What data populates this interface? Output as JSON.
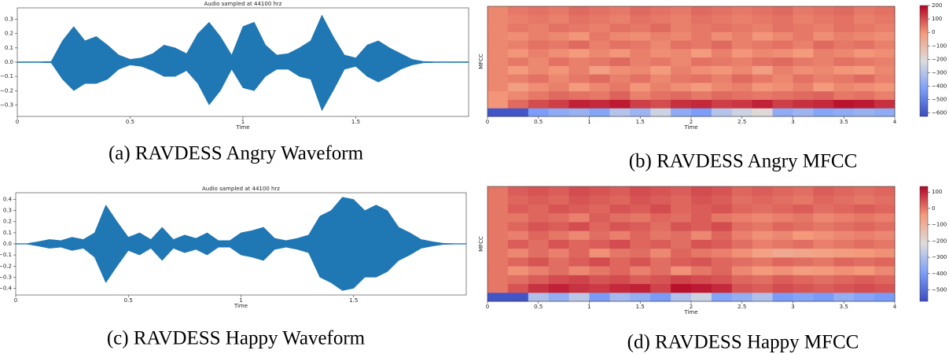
{
  "chart_data": [
    {
      "type": "waveform",
      "title": "Audio sampled at 44100 hrz",
      "xlabel": "Time",
      "caption": "(a) RAVDESS Angry Waveform",
      "color": "#1f77b4",
      "xlim": [
        0,
        2.0
      ],
      "ylim": [
        -0.38,
        0.38
      ],
      "xticks": [
        0,
        0.5,
        1,
        1.5
      ],
      "yticks": [
        {
          "value": -0.3,
          "label": "−0.3"
        },
        {
          "value": -0.2,
          "label": "−0.2"
        },
        {
          "value": -0.1,
          "label": "−0.1"
        },
        {
          "value": 0,
          "label": "0.0"
        },
        0.1,
        0.2,
        0.3
      ],
      "x": [
        0,
        0.05,
        0.1,
        0.15,
        0.2,
        0.25,
        0.3,
        0.35,
        0.4,
        0.45,
        0.5,
        0.55,
        0.6,
        0.65,
        0.7,
        0.75,
        0.8,
        0.85,
        0.9,
        0.95,
        1.0,
        1.05,
        1.1,
        1.15,
        1.2,
        1.25,
        1.3,
        1.35,
        1.4,
        1.45,
        1.5,
        1.55,
        1.6,
        1.65,
        1.7,
        1.75,
        1.8,
        1.85,
        1.9,
        1.95,
        2.0
      ],
      "upper": [
        0.003,
        0.003,
        0.003,
        0.005,
        0.15,
        0.25,
        0.15,
        0.18,
        0.12,
        0.05,
        0.02,
        0.03,
        0.06,
        0.12,
        0.1,
        0.06,
        0.2,
        0.28,
        0.18,
        0.05,
        0.25,
        0.28,
        0.12,
        0.05,
        0.06,
        0.1,
        0.15,
        0.33,
        0.18,
        0.05,
        0.03,
        0.12,
        0.15,
        0.1,
        0.06,
        0.02,
        0.005,
        0.003,
        0.003,
        0.003,
        0.003
      ],
      "lower": [
        -0.003,
        -0.003,
        -0.003,
        -0.005,
        -0.12,
        -0.2,
        -0.15,
        -0.15,
        -0.12,
        -0.05,
        -0.02,
        -0.03,
        -0.06,
        -0.1,
        -0.1,
        -0.06,
        -0.15,
        -0.3,
        -0.2,
        -0.05,
        -0.18,
        -0.2,
        -0.1,
        -0.05,
        -0.05,
        -0.1,
        -0.12,
        -0.34,
        -0.2,
        -0.05,
        -0.03,
        -0.1,
        -0.14,
        -0.1,
        -0.05,
        -0.02,
        -0.005,
        -0.003,
        -0.003,
        -0.003,
        -0.003
      ]
    },
    {
      "type": "heatmap",
      "xlabel": "Time",
      "ylabel": "MFCC",
      "caption": "(b) RAVDESS Angry MFCC",
      "colormap": "coolwarm",
      "xlim": [
        0,
        4
      ],
      "xticks": [
        0,
        0.5,
        1,
        1.5,
        2,
        2.5,
        3,
        3.5,
        4
      ],
      "clim": [
        -625,
        200
      ],
      "cticks": [
        200,
        100,
        0,
        {
          "value": -100,
          "label": "−100"
        },
        {
          "value": -200,
          "label": "−200"
        },
        {
          "value": -300,
          "label": "−300"
        },
        {
          "value": -400,
          "label": "−400"
        },
        {
          "value": -500,
          "label": "−500"
        },
        {
          "value": -600,
          "label": "−600"
        }
      ],
      "values": [
        [
          -600,
          -600,
          -420,
          -380,
          -360,
          -400,
          -300,
          -350,
          -250,
          -380,
          -420,
          -300,
          -250,
          -200,
          -380,
          -350,
          -400,
          -380,
          -360,
          -380
        ],
        [
          0,
          60,
          100,
          120,
          160,
          150,
          170,
          120,
          100,
          140,
          150,
          120,
          130,
          160,
          120,
          140,
          150,
          180,
          170,
          140
        ],
        [
          0,
          20,
          40,
          60,
          50,
          40,
          70,
          30,
          50,
          60,
          40,
          60,
          50,
          40,
          50,
          60,
          70,
          40,
          50,
          30
        ],
        [
          20,
          -20,
          10,
          30,
          -10,
          20,
          40,
          0,
          30,
          10,
          -10,
          20,
          30,
          0,
          10,
          30,
          -10,
          20,
          10,
          0
        ],
        [
          20,
          30,
          50,
          20,
          40,
          60,
          30,
          50,
          20,
          40,
          50,
          30,
          60,
          40,
          20,
          50,
          30,
          40,
          60,
          30
        ],
        [
          20,
          -10,
          20,
          0,
          30,
          -20,
          10,
          20,
          -10,
          30,
          10,
          0,
          20,
          -20,
          30,
          10,
          20,
          0,
          -10,
          20
        ],
        [
          20,
          40,
          20,
          50,
          30,
          40,
          60,
          30,
          40,
          20,
          50,
          40,
          30,
          50,
          60,
          40,
          30,
          50,
          40,
          30
        ],
        [
          20,
          0,
          30,
          10,
          -10,
          20,
          0,
          30,
          10,
          20,
          -10,
          30,
          0,
          20,
          10,
          -10,
          30,
          20,
          0,
          10
        ],
        [
          20,
          30,
          50,
          40,
          60,
          30,
          50,
          40,
          20,
          50,
          40,
          60,
          30,
          40,
          50,
          30,
          60,
          40,
          50,
          30
        ],
        [
          20,
          10,
          30,
          20,
          0,
          40,
          20,
          10,
          30,
          20,
          40,
          10,
          30,
          0,
          20,
          40,
          10,
          30,
          20,
          10
        ],
        [
          20,
          40,
          30,
          50,
          40,
          30,
          50,
          40,
          60,
          30,
          40,
          50,
          40,
          30,
          50,
          40,
          30,
          50,
          40,
          30
        ],
        [
          20,
          30,
          40,
          30,
          50,
          40,
          30,
          50,
          40,
          30,
          50,
          40,
          30,
          40,
          50,
          30,
          40,
          50,
          30,
          40
        ],
        [
          20,
          40,
          50,
          40,
          60,
          50,
          40,
          60,
          50,
          40,
          60,
          50,
          40,
          50,
          60,
          40,
          50,
          60,
          40,
          50
        ]
      ]
    },
    {
      "type": "waveform",
      "title": "Audio sampled at 44100 hrz",
      "xlabel": "Time",
      "caption": "(c) RAVDESS Happy Waveform",
      "color": "#1f77b4",
      "xlim": [
        0,
        2.0
      ],
      "ylim": [
        -0.46,
        0.46
      ],
      "xticks": [
        0,
        0.5,
        1,
        1.5
      ],
      "yticks": [
        {
          "value": -0.4,
          "label": "−0.4"
        },
        {
          "value": -0.3,
          "label": "−0.3"
        },
        {
          "value": -0.2,
          "label": "−0.2"
        },
        {
          "value": -0.1,
          "label": "−0.1"
        },
        {
          "value": 0,
          "label": "0.0"
        },
        0.1,
        0.2,
        0.3,
        0.4
      ],
      "x": [
        0,
        0.05,
        0.1,
        0.15,
        0.2,
        0.25,
        0.3,
        0.35,
        0.4,
        0.45,
        0.5,
        0.55,
        0.6,
        0.65,
        0.7,
        0.75,
        0.8,
        0.85,
        0.9,
        0.95,
        1.0,
        1.05,
        1.1,
        1.15,
        1.2,
        1.25,
        1.3,
        1.35,
        1.4,
        1.45,
        1.5,
        1.55,
        1.6,
        1.65,
        1.7,
        1.75,
        1.8,
        1.85,
        1.9,
        1.95,
        2.0
      ],
      "upper": [
        0.003,
        0.003,
        0.02,
        0.04,
        0.03,
        0.06,
        0.04,
        0.1,
        0.35,
        0.2,
        0.06,
        0.1,
        0.04,
        0.15,
        0.04,
        0.08,
        0.05,
        0.1,
        0.03,
        0.03,
        0.1,
        0.12,
        0.15,
        0.05,
        0.03,
        0.05,
        0.08,
        0.25,
        0.3,
        0.42,
        0.4,
        0.3,
        0.35,
        0.3,
        0.15,
        0.1,
        0.04,
        0.02,
        0.005,
        0.003,
        0.003
      ],
      "lower": [
        -0.003,
        -0.003,
        -0.02,
        -0.04,
        -0.03,
        -0.06,
        -0.04,
        -0.12,
        -0.35,
        -0.2,
        -0.06,
        -0.1,
        -0.04,
        -0.15,
        -0.04,
        -0.08,
        -0.05,
        -0.1,
        -0.03,
        -0.03,
        -0.1,
        -0.12,
        -0.15,
        -0.05,
        -0.03,
        -0.05,
        -0.08,
        -0.3,
        -0.35,
        -0.42,
        -0.4,
        -0.3,
        -0.3,
        -0.25,
        -0.15,
        -0.1,
        -0.04,
        -0.02,
        -0.005,
        -0.003,
        -0.003
      ]
    },
    {
      "type": "heatmap",
      "xlabel": "Time",
      "ylabel": "MFCC",
      "caption": "(d) RAVDESS Happy MFCC",
      "colormap": "coolwarm",
      "xlim": [
        0,
        4
      ],
      "xticks": [
        0,
        0.5,
        1,
        1.5,
        2,
        2.5,
        3,
        3.5,
        4
      ],
      "clim": [
        -570,
        135
      ],
      "cticks": [
        100,
        0,
        {
          "value": -100,
          "label": "−100"
        },
        {
          "value": -200,
          "label": "−200"
        },
        {
          "value": -300,
          "label": "−300"
        },
        {
          "value": -400,
          "label": "−400"
        },
        {
          "value": -500,
          "label": "−500"
        }
      ],
      "values": [
        [
          -550,
          -550,
          -300,
          -350,
          -280,
          -400,
          -320,
          -350,
          -400,
          -300,
          -250,
          -380,
          -350,
          -300,
          -400,
          -380,
          -400,
          -350,
          -380,
          -400
        ],
        [
          0,
          40,
          80,
          100,
          80,
          70,
          90,
          100,
          60,
          120,
          110,
          90,
          40,
          30,
          50,
          40,
          30,
          40,
          50,
          40
        ],
        [
          0,
          10,
          30,
          50,
          60,
          40,
          50,
          30,
          40,
          60,
          50,
          40,
          20,
          10,
          30,
          20,
          10,
          20,
          30,
          20
        ],
        [
          0,
          -30,
          -10,
          10,
          -20,
          0,
          20,
          -10,
          10,
          -30,
          0,
          20,
          -20,
          -40,
          -30,
          -50,
          -40,
          -30,
          -40,
          -20
        ],
        [
          0,
          20,
          40,
          10,
          30,
          50,
          20,
          40,
          10,
          30,
          40,
          20,
          10,
          0,
          20,
          10,
          0,
          20,
          10,
          20
        ],
        [
          0,
          -20,
          10,
          -10,
          20,
          -30,
          0,
          10,
          -20,
          20,
          0,
          -10,
          -30,
          -60,
          -80,
          -70,
          -60,
          -50,
          -40,
          -30
        ],
        [
          0,
          30,
          10,
          40,
          20,
          30,
          50,
          20,
          30,
          10,
          40,
          30,
          10,
          -10,
          0,
          10,
          -10,
          0,
          10,
          0
        ],
        [
          0,
          -10,
          20,
          0,
          -20,
          10,
          -10,
          20,
          0,
          10,
          -20,
          20,
          -10,
          -30,
          -20,
          -40,
          -30,
          -20,
          -10,
          -20
        ],
        [
          0,
          20,
          40,
          30,
          50,
          20,
          40,
          30,
          10,
          40,
          30,
          50,
          10,
          0,
          20,
          10,
          0,
          10,
          20,
          10
        ],
        [
          0,
          0,
          20,
          10,
          -10,
          30,
          10,
          0,
          20,
          10,
          30,
          0,
          -10,
          -20,
          -10,
          0,
          -20,
          -10,
          0,
          -10
        ],
        [
          0,
          30,
          20,
          40,
          30,
          20,
          40,
          30,
          50,
          20,
          30,
          40,
          20,
          10,
          20,
          30,
          10,
          20,
          30,
          20
        ],
        [
          0,
          20,
          30,
          20,
          40,
          30,
          20,
          40,
          30,
          20,
          40,
          30,
          10,
          20,
          10,
          0,
          20,
          10,
          0,
          10
        ],
        [
          0,
          30,
          40,
          30,
          50,
          40,
          30,
          50,
          40,
          30,
          50,
          40,
          20,
          30,
          20,
          10,
          30,
          20,
          10,
          20
        ]
      ]
    }
  ]
}
